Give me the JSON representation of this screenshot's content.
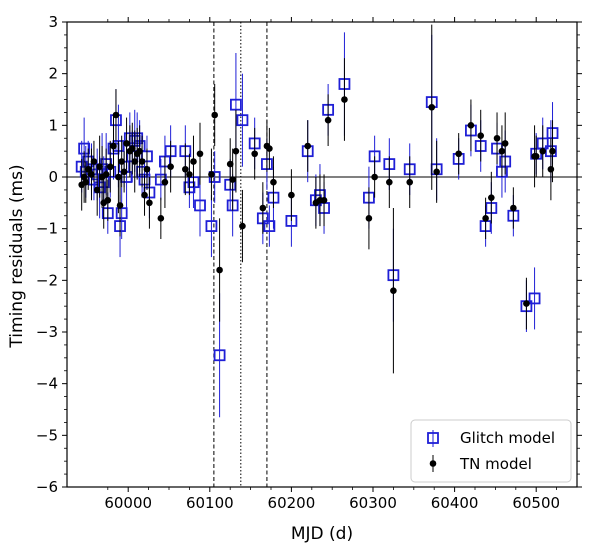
{
  "chart_data": {
    "type": "scatter",
    "xlabel": "MJD (d)",
    "ylabel": "Timing residuals (ms)",
    "xlim": [
      59925,
      60550
    ],
    "ylim": [
      -6,
      3
    ],
    "xticks": [
      60000,
      60100,
      60200,
      60300,
      60400,
      60500
    ],
    "yticks": [
      -6,
      -5,
      -4,
      -3,
      -2,
      -1,
      0,
      1,
      2,
      3
    ],
    "grid": false,
    "zero_line": 0,
    "vertical_lines": [
      {
        "x": 60105,
        "style": "dashed"
      },
      {
        "x": 60138,
        "style": "dotted"
      },
      {
        "x": 60170,
        "style": "dashed"
      }
    ],
    "legend": {
      "position": "lower-right"
    },
    "series": [
      {
        "name": "Glitch model",
        "marker": "open-square",
        "color": "#1f1fd6",
        "points": [
          [
            59943,
            0.2,
            0.5
          ],
          [
            59946,
            0.55,
            0.6
          ],
          [
            59948,
            0.1,
            0.5
          ],
          [
            59951,
            0.3,
            0.4
          ],
          [
            59955,
            0.15,
            0.5
          ],
          [
            59958,
            -0.05,
            0.4
          ],
          [
            59962,
            0.05,
            0.5
          ],
          [
            59965,
            -0.2,
            0.6
          ],
          [
            59968,
            0.15,
            0.7
          ],
          [
            59970,
            -0.1,
            0.5
          ],
          [
            59973,
            0.25,
            0.6
          ],
          [
            59975,
            -0.7,
            0.4
          ],
          [
            59978,
            0.1,
            0.5
          ],
          [
            59982,
            0.55,
            0.6
          ],
          [
            59985,
            1.1,
            0.6
          ],
          [
            59988,
            0.6,
            0.8
          ],
          [
            59990,
            -0.95,
            0.6
          ],
          [
            59992,
            -0.7,
            0.5
          ],
          [
            59995,
            0.2,
            0.4
          ],
          [
            59998,
            0.0,
            0.7
          ],
          [
            60002,
            0.75,
            0.5
          ],
          [
            60005,
            0.4,
            0.5
          ],
          [
            60008,
            0.7,
            0.6
          ],
          [
            60011,
            0.75,
            0.5
          ],
          [
            60014,
            0.6,
            0.5
          ],
          [
            60017,
            0.1,
            0.5
          ],
          [
            60020,
            -0.05,
            0.4
          ],
          [
            60023,
            0.4,
            0.4
          ],
          [
            60026,
            -0.3,
            0.5
          ],
          [
            60040,
            -0.05,
            0.4
          ],
          [
            60045,
            0.3,
            0.5
          ],
          [
            60052,
            0.5,
            0.5
          ],
          [
            60070,
            0.5,
            0.5
          ],
          [
            60075,
            -0.2,
            0.4
          ],
          [
            60080,
            -0.1,
            0.5
          ],
          [
            60088,
            -0.55,
            0.6
          ],
          [
            60102,
            -0.95,
            0.6
          ],
          [
            60106,
            0.0,
            0.5
          ],
          [
            60112,
            -3.45,
            1.2
          ],
          [
            60125,
            -0.15,
            0.5
          ],
          [
            60128,
            -0.55,
            0.6
          ],
          [
            60132,
            1.4,
            1.0
          ],
          [
            60140,
            1.1,
            0.9
          ],
          [
            60155,
            0.65,
            0.5
          ],
          [
            60165,
            -0.8,
            0.5
          ],
          [
            60170,
            0.25,
            0.5
          ],
          [
            60173,
            -0.95,
            0.4
          ],
          [
            60178,
            -0.4,
            0.6
          ],
          [
            60200,
            -0.85,
            0.5
          ],
          [
            60220,
            0.5,
            0.6
          ],
          [
            60230,
            -0.45,
            0.5
          ],
          [
            60235,
            -0.35,
            0.6
          ],
          [
            60240,
            -0.6,
            0.5
          ],
          [
            60245,
            1.3,
            0.5
          ],
          [
            60265,
            1.8,
            1.0
          ],
          [
            60295,
            -0.4,
            0.6
          ],
          [
            60302,
            0.4,
            0.4
          ],
          [
            60320,
            0.25,
            0.5
          ],
          [
            60325,
            -1.9,
            0.9
          ],
          [
            60345,
            0.15,
            0.5
          ],
          [
            60372,
            1.45,
            1.3
          ],
          [
            60378,
            0.15,
            0.6
          ],
          [
            60405,
            0.35,
            0.4
          ],
          [
            60420,
            0.9,
            0.5
          ],
          [
            60432,
            0.6,
            0.5
          ],
          [
            60438,
            -0.95,
            0.4
          ],
          [
            60445,
            -0.6,
            0.5
          ],
          [
            60452,
            0.55,
            0.5
          ],
          [
            60458,
            0.1,
            0.5
          ],
          [
            60462,
            0.3,
            0.6
          ],
          [
            60472,
            -0.75,
            0.4
          ],
          [
            60488,
            -2.5,
            0.5
          ],
          [
            60498,
            -2.35,
            0.6
          ],
          [
            60500,
            0.45,
            0.4
          ],
          [
            60508,
            0.65,
            0.5
          ],
          [
            60518,
            0.5,
            0.6
          ],
          [
            60520,
            0.85,
            0.6
          ]
        ]
      },
      {
        "name": "TN model",
        "marker": "filled-circle",
        "color": "#000000",
        "points": [
          [
            59943,
            -0.15,
            0.5
          ],
          [
            59946,
            0.0,
            0.5
          ],
          [
            59948,
            -0.1,
            0.4
          ],
          [
            59951,
            0.15,
            0.4
          ],
          [
            59955,
            0.05,
            0.5
          ],
          [
            59958,
            0.3,
            0.4
          ],
          [
            59962,
            -0.25,
            0.5
          ],
          [
            59965,
            0.2,
            0.6
          ],
          [
            59968,
            0.0,
            0.6
          ],
          [
            59970,
            -0.5,
            0.5
          ],
          [
            59973,
            0.05,
            0.5
          ],
          [
            59975,
            -0.45,
            0.4
          ],
          [
            59978,
            0.2,
            0.5
          ],
          [
            59982,
            0.6,
            0.6
          ],
          [
            59985,
            1.2,
            0.5
          ],
          [
            59988,
            0.0,
            0.7
          ],
          [
            59990,
            -0.55,
            0.6
          ],
          [
            59992,
            0.3,
            0.5
          ],
          [
            59995,
            0.1,
            0.4
          ],
          [
            59998,
            0.65,
            0.5
          ],
          [
            60002,
            0.5,
            0.5
          ],
          [
            60005,
            0.55,
            0.5
          ],
          [
            60008,
            0.3,
            0.6
          ],
          [
            60011,
            0.45,
            0.5
          ],
          [
            60014,
            0.5,
            0.5
          ],
          [
            60017,
            0.3,
            0.5
          ],
          [
            60020,
            -0.35,
            0.4
          ],
          [
            60023,
            0.15,
            0.4
          ],
          [
            60026,
            -0.5,
            0.5
          ],
          [
            60040,
            -0.8,
            0.4
          ],
          [
            60045,
            -0.1,
            0.5
          ],
          [
            60052,
            0.2,
            0.5
          ],
          [
            60070,
            0.15,
            0.5
          ],
          [
            60075,
            0.05,
            0.4
          ],
          [
            60080,
            0.3,
            0.5
          ],
          [
            60088,
            0.45,
            0.6
          ],
          [
            60102,
            0.05,
            0.5
          ],
          [
            60106,
            1.2,
            0.6
          ],
          [
            60112,
            -1.8,
            1.0
          ],
          [
            60125,
            0.25,
            0.5
          ],
          [
            60128,
            -0.05,
            0.6
          ],
          [
            60132,
            0.5,
            0.8
          ],
          [
            60140,
            -0.95,
            0.7
          ],
          [
            60155,
            0.45,
            0.5
          ],
          [
            60165,
            -0.6,
            0.5
          ],
          [
            60170,
            0.6,
            0.5
          ],
          [
            60173,
            0.55,
            0.4
          ],
          [
            60178,
            -0.1,
            0.5
          ],
          [
            60200,
            -0.35,
            0.5
          ],
          [
            60220,
            0.6,
            0.5
          ],
          [
            60230,
            -0.5,
            0.5
          ],
          [
            60235,
            -0.45,
            0.5
          ],
          [
            60240,
            -0.45,
            0.5
          ],
          [
            60245,
            1.1,
            0.5
          ],
          [
            60265,
            1.5,
            0.8
          ],
          [
            60295,
            -0.8,
            0.6
          ],
          [
            60302,
            0.0,
            0.4
          ],
          [
            60320,
            -0.1,
            0.5
          ],
          [
            60325,
            -2.2,
            1.6
          ],
          [
            60345,
            -0.1,
            0.5
          ],
          [
            60372,
            1.35,
            1.6
          ],
          [
            60378,
            0.1,
            0.6
          ],
          [
            60405,
            0.45,
            0.4
          ],
          [
            60420,
            1.0,
            0.5
          ],
          [
            60432,
            0.8,
            0.5
          ],
          [
            60438,
            -0.8,
            0.4
          ],
          [
            60445,
            -0.4,
            0.5
          ],
          [
            60452,
            0.75,
            0.5
          ],
          [
            60458,
            0.5,
            0.5
          ],
          [
            60462,
            0.65,
            0.6
          ],
          [
            60472,
            -0.6,
            0.4
          ],
          [
            60488,
            -2.45,
            0.5
          ],
          [
            60498,
            0.4,
            0.6
          ],
          [
            60500,
            0.4,
            0.4
          ],
          [
            60508,
            0.5,
            0.5
          ],
          [
            60518,
            0.15,
            0.6
          ],
          [
            60520,
            0.5,
            0.6
          ]
        ]
      }
    ]
  }
}
